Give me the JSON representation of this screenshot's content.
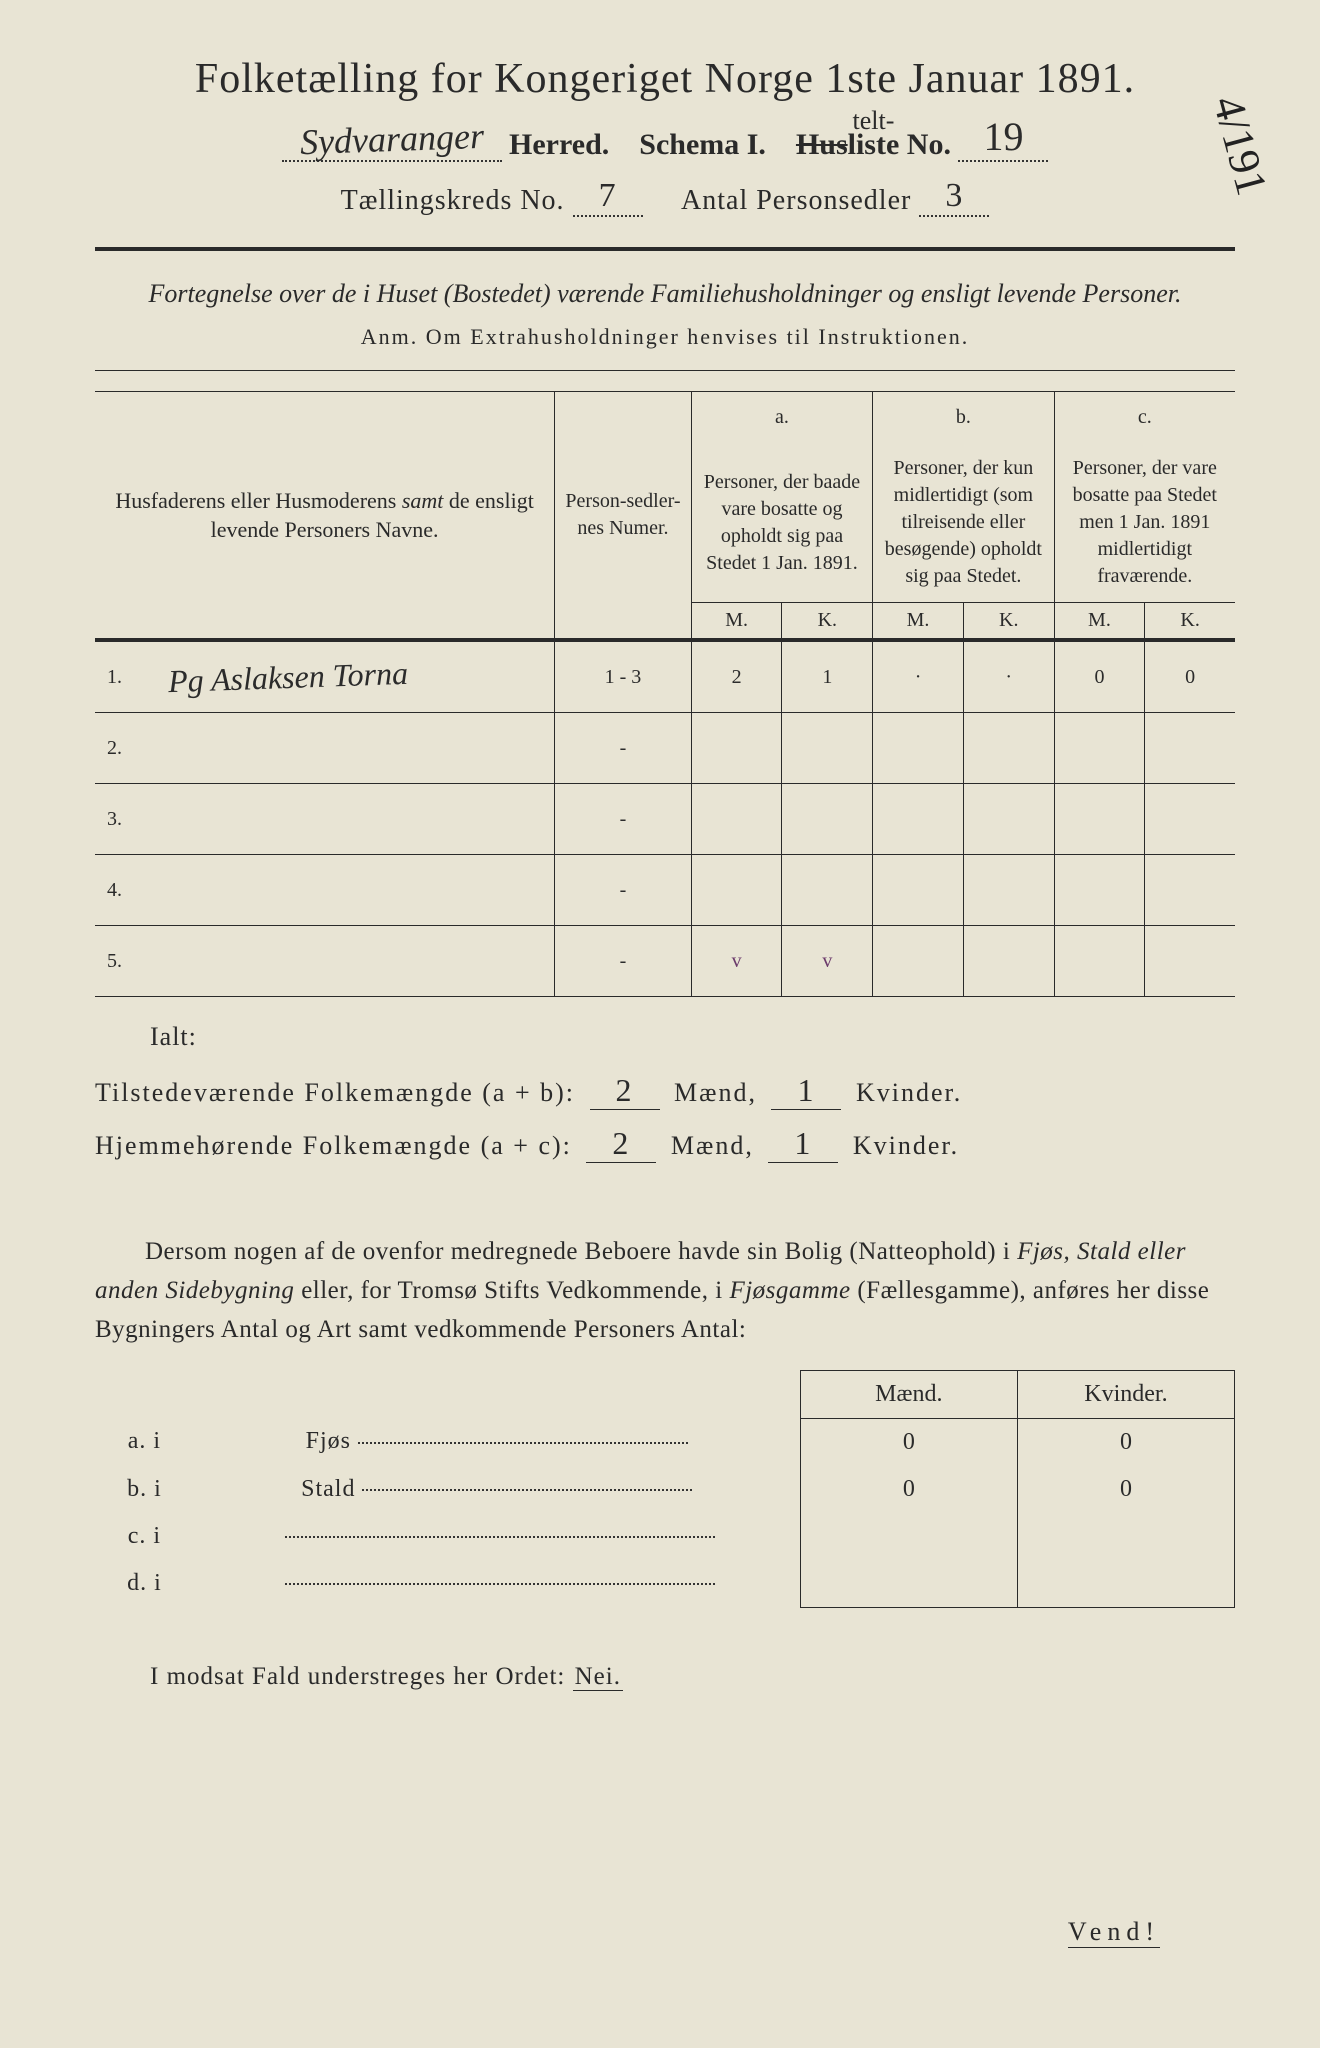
{
  "title": "Folketælling for Kongeriget Norge 1ste Januar 1891.",
  "header": {
    "herred_hand": "Sydvaranger",
    "herred_label": "Herred.",
    "schema_label": "Schema I.",
    "husliste_strike": "Hus",
    "liste_label": "liste No.",
    "liste_above": "telt-",
    "liste_no": "19",
    "kreds_label": "Tællingskreds No.",
    "kreds_no": "7",
    "antal_label": "Antal Personsedler",
    "antal_no": "3",
    "margin_note": "4/191"
  },
  "subtitle": "Fortegnelse over de i Huset (Bostedet) værende Familiehusholdninger og ensligt levende Personer.",
  "anm": "Anm.  Om Extrahusholdninger henvises til Instruktionen.",
  "table": {
    "col1": "Husfaderens eller Husmoderens <i>samt</i> de ensligt levende Personers Navne.",
    "col2": "Person-sedler-nes Numer.",
    "col_a_label": "a.",
    "col_a": "Personer, der baade vare bosatte og opholdt sig paa Stedet 1 Jan. 1891.",
    "col_b_label": "b.",
    "col_b": "Personer, der kun midlertidigt (som tilreisende eller besøgende) opholdt sig paa Stedet.",
    "col_c_label": "c.",
    "col_c": "Personer, der vare bosatte paa Stedet men 1 Jan. 1891 midlertidigt fraværende.",
    "M": "M.",
    "K": "K.",
    "rows": [
      {
        "n": "1.",
        "name": "Pg Aslaksen Torna",
        "ps": "1 - 3",
        "aM": "2",
        "aK": "1",
        "bM": "·",
        "bK": "·",
        "cM": "0",
        "cK": "0"
      },
      {
        "n": "2.",
        "name": "",
        "ps": "-",
        "aM": "",
        "aK": "",
        "bM": "",
        "bK": "",
        "cM": "",
        "cK": ""
      },
      {
        "n": "3.",
        "name": "",
        "ps": "-",
        "aM": "",
        "aK": "",
        "bM": "",
        "bK": "",
        "cM": "",
        "cK": ""
      },
      {
        "n": "4.",
        "name": "",
        "ps": "-",
        "aM": "",
        "aK": "",
        "bM": "",
        "bK": "",
        "cM": "",
        "cK": ""
      },
      {
        "n": "5.",
        "name": "",
        "ps": "-",
        "aM": "v",
        "aK": "v",
        "bM": "",
        "bK": "",
        "cM": "",
        "cK": ""
      }
    ]
  },
  "ialt": "Ialt:",
  "totals": {
    "line1_label": "Tilstedeværende Folkemængde (a + b):",
    "line2_label": "Hjemmehørende Folkemængde (a + c):",
    "maend": "Mænd,",
    "kvinder": "Kvinder.",
    "t1m": "2",
    "t1k": "1",
    "t2m": "2",
    "t2k": "1"
  },
  "paragraph": "Dersom nogen af de ovenfor medregnede Beboere havde sin Bolig (Natteophold) i <i>Fjøs, Stald eller anden Sidebygning</i> eller, for Tromsø Stifts Vedkommende, i <i>Fjøsgamme</i> (Fællesgamme), anføres her disse Bygningers Antal og Art samt vedkommende Personers Antal:",
  "buildings": {
    "maend": "Mænd.",
    "kvinder": "Kvinder.",
    "rows": [
      {
        "l": "a.  i",
        "name": "Fjøs",
        "m": "0",
        "k": "0"
      },
      {
        "l": "b.  i",
        "name": "Stald",
        "m": "0",
        "k": "0"
      },
      {
        "l": "c.  i",
        "name": "",
        "m": "",
        "k": ""
      },
      {
        "l": "d.  i",
        "name": "",
        "m": "",
        "k": ""
      }
    ]
  },
  "nei_line_a": "I modsat Fald understreges her Ordet: ",
  "nei_line_b": "Nei.",
  "vend": "Vend!"
}
